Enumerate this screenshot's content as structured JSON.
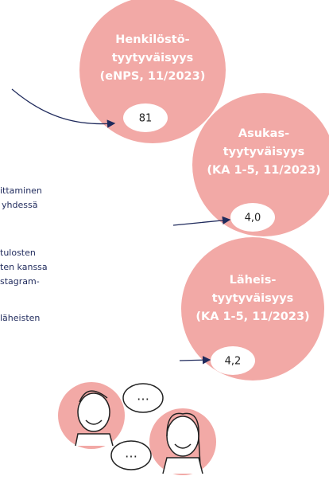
{
  "circles": [
    {
      "title_lines": [
        "Henkilöstö-",
        "tyytyväisyys",
        "(eNPS, 11/2023)"
      ],
      "value": "81"
    },
    {
      "title_lines": [
        "Asukas-",
        "tyytyväisyys",
        "(KA 1-5, 11/2023)"
      ],
      "value": "4,0"
    },
    {
      "title_lines": [
        "Läheis-",
        "tyytyväisyys",
        "(KA 1-5, 11/2023)"
      ],
      "value": "4,2"
    }
  ],
  "side_text": [
    "ittaminen",
    "yhdessä",
    "tulosten",
    "ten kanssa",
    "stagram-",
    "läheisten"
  ],
  "speech_bubbles": [
    "…",
    "…"
  ]
}
